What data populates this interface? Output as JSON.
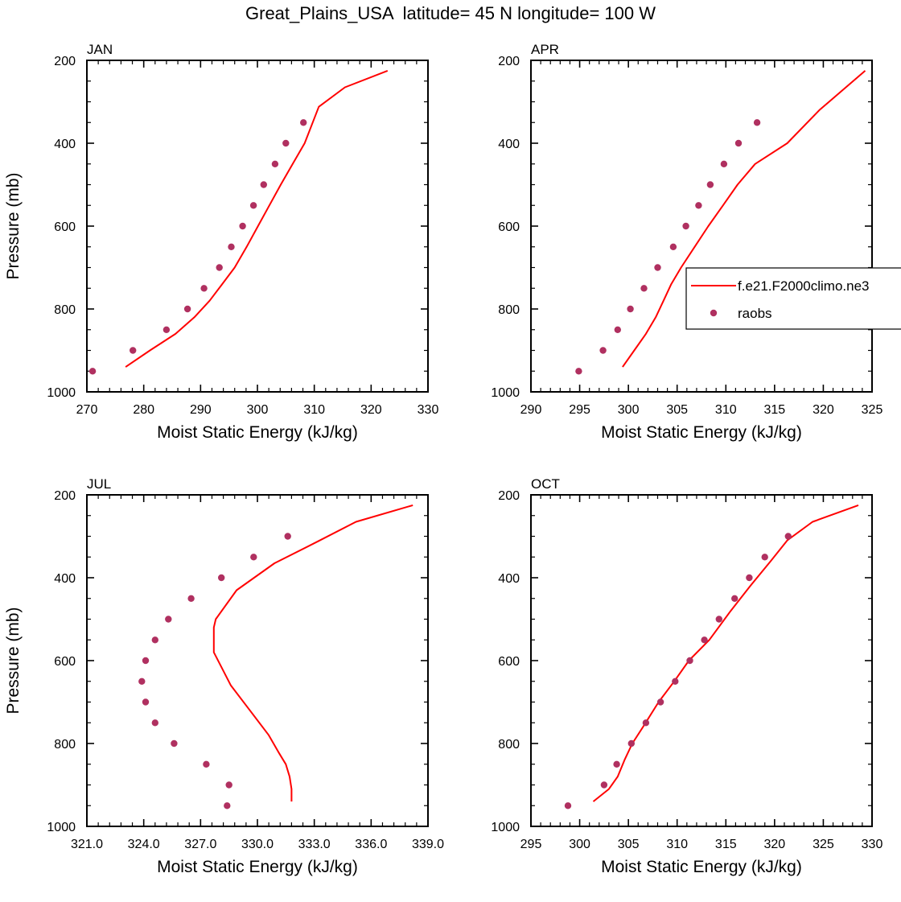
{
  "title": "Great_Plains_USA  latitude= 45 N longitude= 100 W",
  "colors": {
    "model": "#ff0000",
    "obs": "#b03060",
    "axis": "#000000"
  },
  "legend": {
    "entries": [
      {
        "label": "f.e21.F2000climo.ne3",
        "kind": "line",
        "color": "#ff0000"
      },
      {
        "label": "raobs",
        "kind": "marker",
        "color": "#b03060"
      }
    ]
  },
  "chart_data": [
    {
      "type": "line",
      "panel_title": "JAN",
      "xlabel": "Moist Static Energy (kJ/kg)",
      "ylabel": "Pressure (mb)",
      "xlim": [
        270,
        330
      ],
      "ylim": [
        1000,
        200
      ],
      "xticks": [
        "270",
        "280",
        "290",
        "300",
        "310",
        "320",
        "330"
      ],
      "yticks": [
        "200",
        "400",
        "600",
        "800",
        "1000"
      ],
      "series": [
        {
          "name": "f.e21.F2000climo.ne3",
          "kind": "line",
          "x": [
            276.8,
            281.1,
            285.6,
            288.9,
            291.6,
            293.8,
            296.0,
            298.1,
            300.1,
            302.1,
            304.1,
            306.2,
            308.3,
            310.8,
            315.4,
            322.9
          ],
          "y": [
            940,
            900,
            860,
            820,
            780,
            740,
            700,
            650,
            600,
            550,
            500,
            450,
            400,
            312,
            265,
            225
          ]
        },
        {
          "name": "raobs",
          "kind": "scatter",
          "x": [
            271.0,
            278.1,
            284.0,
            287.7,
            290.6,
            293.3,
            295.4,
            297.4,
            299.3,
            301.1,
            303.1,
            305.0,
            308.1
          ],
          "y": [
            950,
            900,
            850,
            800,
            750,
            700,
            650,
            600,
            550,
            500,
            450,
            400,
            350
          ]
        }
      ]
    },
    {
      "type": "line",
      "panel_title": "APR",
      "xlabel": "Moist Static Energy (kJ/kg)",
      "ylabel": "",
      "xlim": [
        290,
        325
      ],
      "ylim": [
        1000,
        200
      ],
      "xticks": [
        "290",
        "295",
        "300",
        "305",
        "310",
        "315",
        "320",
        "325"
      ],
      "yticks": [
        "200",
        "400",
        "600",
        "800",
        "1000"
      ],
      "series": [
        {
          "name": "f.e21.F2000climo.ne3",
          "kind": "line",
          "x": [
            299.4,
            300.6,
            301.8,
            302.8,
            303.6,
            304.4,
            305.4,
            306.8,
            308.2,
            309.7,
            311.2,
            313.0,
            316.3,
            319.6,
            324.3
          ],
          "y": [
            940,
            900,
            860,
            820,
            780,
            740,
            700,
            650,
            600,
            550,
            500,
            450,
            400,
            320,
            225
          ]
        },
        {
          "name": "raobs",
          "kind": "scatter",
          "x": [
            294.9,
            297.4,
            298.9,
            300.2,
            301.6,
            303.0,
            304.6,
            305.9,
            307.2,
            308.4,
            309.8,
            311.3,
            313.2
          ],
          "y": [
            950,
            900,
            850,
            800,
            750,
            700,
            650,
            600,
            550,
            500,
            450,
            400,
            350
          ]
        }
      ]
    },
    {
      "type": "line",
      "panel_title": "JUL",
      "xlabel": "Moist Static Energy (kJ/kg)",
      "ylabel": "Pressure (mb)",
      "xlim": [
        321.0,
        339.0
      ],
      "ylim": [
        1000,
        200
      ],
      "xticks": [
        "321.0",
        "324.0",
        "327.0",
        "330.0",
        "333.0",
        "336.0",
        "339.0"
      ],
      "yticks": [
        "200",
        "400",
        "600",
        "800",
        "1000"
      ],
      "series": [
        {
          "name": "f.e21.F2000climo.ne3",
          "kind": "line",
          "x": [
            331.8,
            331.8,
            331.7,
            331.5,
            331.1,
            330.6,
            329.6,
            328.6,
            327.7,
            327.7,
            327.8,
            328.9,
            330.9,
            333.2,
            335.2,
            338.2
          ],
          "y": [
            940,
            910,
            880,
            850,
            820,
            780,
            720,
            660,
            580,
            520,
            500,
            430,
            365,
            312,
            265,
            225
          ]
        },
        {
          "name": "raobs",
          "kind": "scatter",
          "x": [
            328.4,
            328.5,
            327.3,
            325.6,
            324.6,
            324.1,
            323.9,
            324.1,
            324.6,
            325.3,
            326.5,
            328.1,
            329.8,
            331.6
          ],
          "y": [
            950,
            900,
            850,
            800,
            750,
            700,
            650,
            600,
            550,
            500,
            450,
            400,
            350,
            300
          ]
        }
      ]
    },
    {
      "type": "line",
      "panel_title": "OCT",
      "xlabel": "Moist Static Energy (kJ/kg)",
      "ylabel": "",
      "xlim": [
        295,
        330
      ],
      "ylim": [
        1000,
        200
      ],
      "xticks": [
        "295",
        "300",
        "305",
        "310",
        "315",
        "320",
        "325",
        "330"
      ],
      "yticks": [
        "200",
        "400",
        "600",
        "800",
        "1000"
      ],
      "series": [
        {
          "name": "f.e21.F2000climo.ne3",
          "kind": "line",
          "x": [
            301.4,
            303.0,
            303.9,
            304.6,
            305.4,
            306.5,
            308.1,
            309.7,
            311.2,
            313.3,
            315.5,
            317.5,
            319.6,
            321.3,
            323.9,
            328.6
          ],
          "y": [
            940,
            910,
            880,
            840,
            800,
            760,
            700,
            650,
            600,
            550,
            480,
            420,
            360,
            310,
            265,
            225
          ]
        },
        {
          "name": "raobs",
          "kind": "scatter",
          "x": [
            298.8,
            302.5,
            303.8,
            305.3,
            306.8,
            308.3,
            309.8,
            311.3,
            312.8,
            314.3,
            315.9,
            317.4,
            319.0,
            321.4
          ],
          "y": [
            950,
            900,
            850,
            800,
            750,
            700,
            650,
            600,
            550,
            500,
            450,
            400,
            350,
            300
          ]
        }
      ]
    }
  ]
}
